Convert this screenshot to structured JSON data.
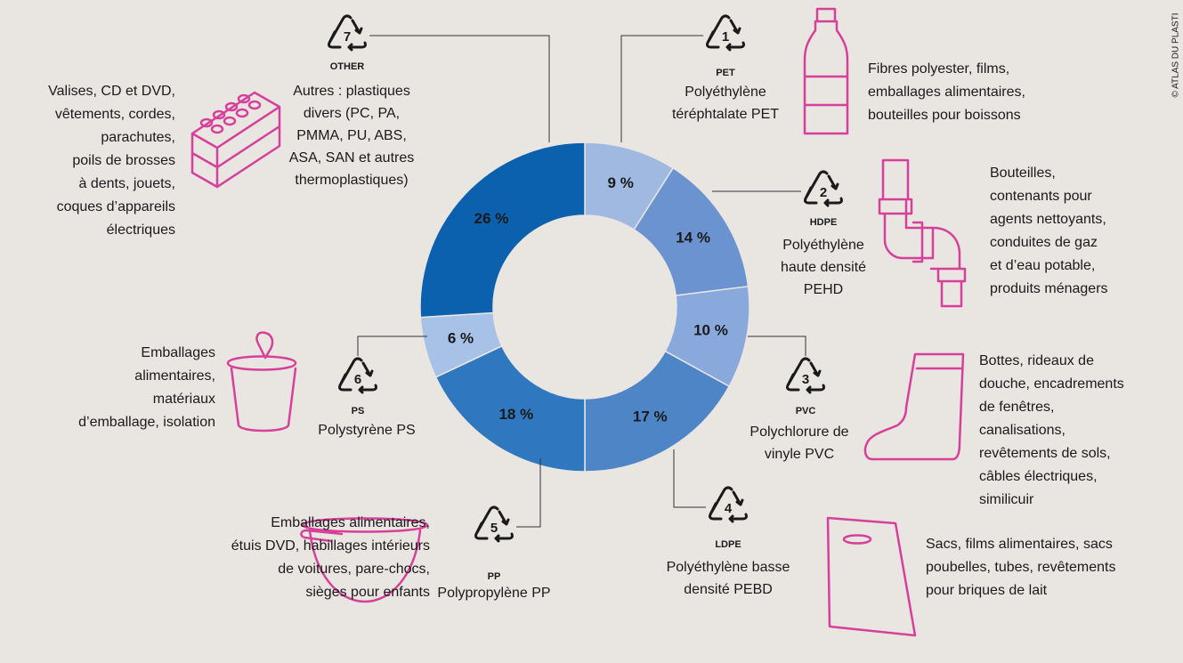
{
  "chart_data": {
    "type": "pie",
    "donut": true,
    "categories": [
      "PET",
      "HDPE",
      "PVC",
      "LDPE",
      "PP",
      "PS",
      "OTHER"
    ],
    "codes": [
      "1",
      "2",
      "3",
      "4",
      "5",
      "6",
      "7"
    ],
    "values": [
      9,
      14,
      10,
      17,
      18,
      6,
      26
    ],
    "value_labels": [
      "9 %",
      "14 %",
      "10 %",
      "17 %",
      "18 %",
      "6 %",
      "26 %"
    ],
    "colors": [
      "#9fb9e1",
      "#6b93cf",
      "#89a9dc",
      "#4e85c7",
      "#2f78bf",
      "#a8c1e7",
      "#0b61ae"
    ],
    "label_colors": [
      "#222222",
      "#222222",
      "#222222",
      "#ffffff",
      "#ffffff",
      "#222222",
      "#ffffff"
    ],
    "names": [
      [
        "Polyéthylène",
        "téréphtalate PET"
      ],
      [
        "Polyéthylène",
        "haute densité",
        "PEHD"
      ],
      [
        "Polychlorure de",
        "vinyle PVC"
      ],
      [
        "Polyéthylène basse",
        "densité PEBD"
      ],
      [
        "Polypropylène PP"
      ],
      [
        "Polystyrène PS"
      ],
      [
        "Autres : plastiques",
        "divers (PC, PA,",
        "PMMA, PU, ABS,",
        "ASA, SAN  et autres",
        "thermoplastiques)"
      ]
    ],
    "uses": [
      [
        "Fibres polyester, films,",
        "emballages alimentaires,",
        "bouteilles pour boissons"
      ],
      [
        "Bouteilles,",
        "contenants pour",
        "agents nettoyants,",
        "conduites de gaz",
        "et d’eau potable,",
        "produits ménagers"
      ],
      [
        "Bottes, rideaux de",
        "douche, encadrements",
        "de fenêtres,",
        "canalisations,",
        "revêtements de sols,",
        "câbles électriques,",
        "similicuir"
      ],
      [
        "Sacs, films alimentaires, sacs",
        "poubelles, tubes, revêtements",
        "pour briques de lait"
      ],
      [
        "Emballages alimentaires,",
        "étuis DVD, habillages intérieurs",
        "de voitures, pare-chocs,",
        "sièges pour enfants"
      ],
      [
        "Emballages",
        "alimentaires,",
        "matériaux",
        "d’emballage, isolation"
      ],
      [
        "Valises, CD et DVD,",
        "vêtements, cordes,",
        "parachutes,",
        "poils de brosses",
        "à dents, jouets,",
        "coques d’appareils",
        "électriques"
      ]
    ],
    "credit": "© ATLAS DU PLASTI"
  }
}
